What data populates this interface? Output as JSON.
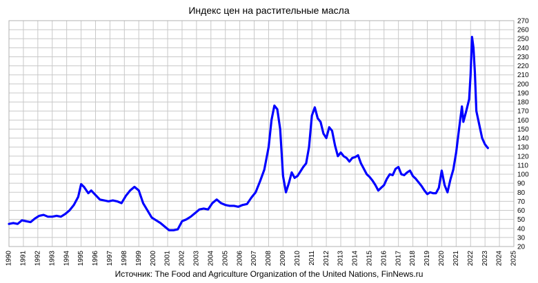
{
  "chart_data": {
    "type": "line",
    "title": "Индекс цен на растительные масла",
    "source": "Источник: The Food and Agriculture Organization of the United Nations, FinNews.ru",
    "xlabel": "",
    "ylabel": "",
    "xlim": [
      1990,
      2025
    ],
    "ylim": [
      20,
      270
    ],
    "x_ticks": [
      "1990",
      "1991",
      "1992",
      "1993",
      "1994",
      "1995",
      "1996",
      "1997",
      "1998",
      "1999",
      "2000",
      "2001",
      "2002",
      "2003",
      "2004",
      "2005",
      "2006",
      "2007",
      "2008",
      "2009",
      "2010",
      "2011",
      "2012",
      "2013",
      "2014",
      "2015",
      "2016",
      "2017",
      "2018",
      "2019",
      "2020",
      "2021",
      "2022",
      "2023",
      "2024",
      "2025"
    ],
    "y_ticks": [
      "20",
      "30",
      "40",
      "50",
      "60",
      "70",
      "80",
      "90",
      "100",
      "110",
      "120",
      "130",
      "140",
      "150",
      "160",
      "170",
      "180",
      "190",
      "200",
      "210",
      "220",
      "230",
      "240",
      "250",
      "260",
      "270"
    ],
    "y_axis_side": "right",
    "grid": true,
    "line_color": "#0000ff",
    "series": [
      {
        "points": [
          [
            1990.0,
            45
          ],
          [
            1990.3,
            46
          ],
          [
            1990.6,
            45
          ],
          [
            1990.9,
            49
          ],
          [
            1991.2,
            48
          ],
          [
            1991.5,
            47
          ],
          [
            1991.8,
            51
          ],
          [
            1992.1,
            54
          ],
          [
            1992.4,
            55
          ],
          [
            1992.7,
            53
          ],
          [
            1993.0,
            53
          ],
          [
            1993.3,
            54
          ],
          [
            1993.6,
            53
          ],
          [
            1993.9,
            56
          ],
          [
            1994.2,
            60
          ],
          [
            1994.5,
            66
          ],
          [
            1994.8,
            75
          ],
          [
            1995.0,
            89
          ],
          [
            1995.2,
            86
          ],
          [
            1995.5,
            79
          ],
          [
            1995.7,
            82
          ],
          [
            1996.0,
            77
          ],
          [
            1996.3,
            72
          ],
          [
            1996.6,
            71
          ],
          [
            1996.9,
            70
          ],
          [
            1997.2,
            71
          ],
          [
            1997.5,
            70
          ],
          [
            1997.8,
            68
          ],
          [
            1998.1,
            76
          ],
          [
            1998.4,
            82
          ],
          [
            1998.7,
            86
          ],
          [
            1999.0,
            82
          ],
          [
            1999.3,
            68
          ],
          [
            1999.6,
            60
          ],
          [
            1999.9,
            52
          ],
          [
            2000.2,
            49
          ],
          [
            2000.5,
            46
          ],
          [
            2000.8,
            42
          ],
          [
            2001.1,
            38
          ],
          [
            2001.4,
            38
          ],
          [
            2001.7,
            39
          ],
          [
            2002.0,
            48
          ],
          [
            2002.3,
            50
          ],
          [
            2002.6,
            53
          ],
          [
            2002.9,
            57
          ],
          [
            2003.2,
            61
          ],
          [
            2003.5,
            62
          ],
          [
            2003.8,
            61
          ],
          [
            2004.1,
            68
          ],
          [
            2004.4,
            72
          ],
          [
            2004.7,
            68
          ],
          [
            2005.0,
            66
          ],
          [
            2005.3,
            65
          ],
          [
            2005.6,
            65
          ],
          [
            2005.9,
            64
          ],
          [
            2006.2,
            66
          ],
          [
            2006.5,
            67
          ],
          [
            2006.8,
            74
          ],
          [
            2007.1,
            80
          ],
          [
            2007.4,
            92
          ],
          [
            2007.7,
            105
          ],
          [
            2008.0,
            130
          ],
          [
            2008.2,
            160
          ],
          [
            2008.4,
            176
          ],
          [
            2008.6,
            172
          ],
          [
            2008.8,
            150
          ],
          [
            2009.0,
            98
          ],
          [
            2009.2,
            80
          ],
          [
            2009.4,
            90
          ],
          [
            2009.6,
            102
          ],
          [
            2009.8,
            96
          ],
          [
            2010.0,
            98
          ],
          [
            2010.2,
            103
          ],
          [
            2010.4,
            108
          ],
          [
            2010.6,
            112
          ],
          [
            2010.8,
            130
          ],
          [
            2011.0,
            165
          ],
          [
            2011.2,
            174
          ],
          [
            2011.4,
            162
          ],
          [
            2011.6,
            158
          ],
          [
            2011.8,
            145
          ],
          [
            2012.0,
            140
          ],
          [
            2012.2,
            152
          ],
          [
            2012.4,
            148
          ],
          [
            2012.6,
            132
          ],
          [
            2012.8,
            120
          ],
          [
            2013.0,
            124
          ],
          [
            2013.2,
            120
          ],
          [
            2013.4,
            118
          ],
          [
            2013.6,
            114
          ],
          [
            2013.8,
            118
          ],
          [
            2014.0,
            119
          ],
          [
            2014.2,
            121
          ],
          [
            2014.4,
            112
          ],
          [
            2014.6,
            106
          ],
          [
            2014.8,
            100
          ],
          [
            2015.0,
            97
          ],
          [
            2015.2,
            93
          ],
          [
            2015.4,
            88
          ],
          [
            2015.6,
            82
          ],
          [
            2015.8,
            85
          ],
          [
            2016.0,
            88
          ],
          [
            2016.2,
            95
          ],
          [
            2016.4,
            100
          ],
          [
            2016.6,
            99
          ],
          [
            2016.8,
            106
          ],
          [
            2017.0,
            108
          ],
          [
            2017.2,
            100
          ],
          [
            2017.4,
            99
          ],
          [
            2017.6,
            102
          ],
          [
            2017.8,
            104
          ],
          [
            2018.0,
            98
          ],
          [
            2018.2,
            95
          ],
          [
            2018.4,
            91
          ],
          [
            2018.6,
            87
          ],
          [
            2018.8,
            82
          ],
          [
            2019.0,
            78
          ],
          [
            2019.2,
            80
          ],
          [
            2019.4,
            79
          ],
          [
            2019.6,
            79
          ],
          [
            2019.8,
            85
          ],
          [
            2020.0,
            104
          ],
          [
            2020.2,
            88
          ],
          [
            2020.4,
            80
          ],
          [
            2020.6,
            94
          ],
          [
            2020.8,
            105
          ],
          [
            2021.0,
            124
          ],
          [
            2021.2,
            150
          ],
          [
            2021.4,
            175
          ],
          [
            2021.5,
            158
          ],
          [
            2021.7,
            170
          ],
          [
            2021.9,
            183
          ],
          [
            2022.0,
            210
          ],
          [
            2022.1,
            252
          ],
          [
            2022.2,
            240
          ],
          [
            2022.3,
            212
          ],
          [
            2022.4,
            170
          ],
          [
            2022.6,
            155
          ],
          [
            2022.8,
            140
          ],
          [
            2023.0,
            133
          ],
          [
            2023.2,
            129
          ]
        ]
      }
    ]
  }
}
